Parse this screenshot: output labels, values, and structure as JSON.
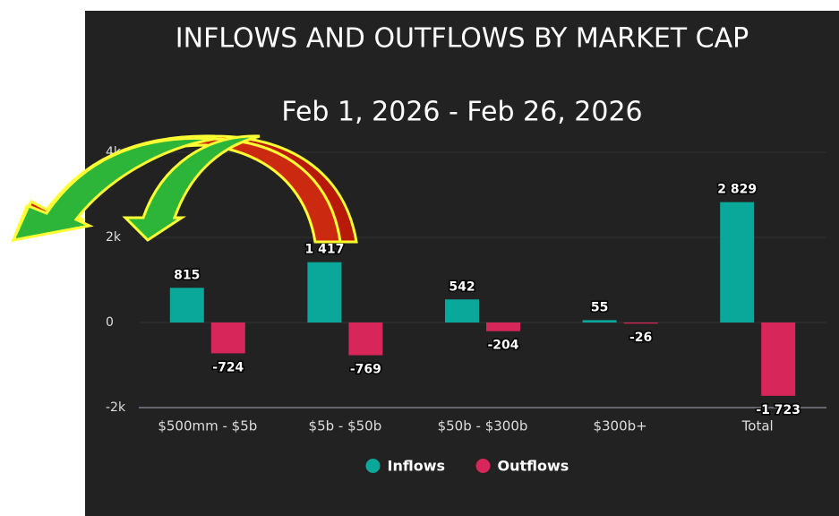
{
  "chart_data": {
    "type": "bar",
    "title": "INFLOWS AND OUTFLOWS BY MARKET CAP",
    "subtitle": "Feb 1, 2026 - Feb 26, 2026",
    "categories": [
      "$500mm - $5b",
      "$5b - $50b",
      "$50b - $300b",
      "$300b+",
      "Total"
    ],
    "series": [
      {
        "name": "Inflows",
        "color": "#0aa89b",
        "values": [
          815,
          1417,
          542,
          55,
          2829
        ],
        "value_labels": [
          "815",
          "1 417",
          "542",
          "55",
          "2 829"
        ]
      },
      {
        "name": "Outflows",
        "color": "#d6265a",
        "values": [
          -724,
          -769,
          -204,
          -26,
          -1723
        ],
        "value_labels": [
          "-724",
          "-769",
          "-204",
          "-26",
          "-1 723"
        ]
      }
    ],
    "ylim": [
      -2000,
      4000
    ],
    "yticks": [
      {
        "value": -2000,
        "label": "-2k"
      },
      0,
      {
        "value": 2000,
        "label": "2k"
      },
      {
        "value": 4000,
        "label": "4k"
      }
    ],
    "grid": true,
    "legend": "bottom"
  }
}
